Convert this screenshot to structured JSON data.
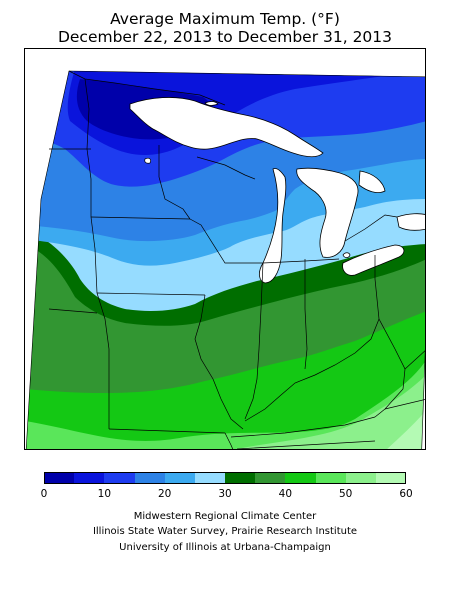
{
  "title": "Average Maximum Temp. (°F)",
  "subtitle": "December 22, 2013 to December 31, 2013",
  "legend": {
    "unit": "°F",
    "ticks": [
      "0",
      "10",
      "20",
      "30",
      "40",
      "50",
      "60"
    ],
    "bins": [
      {
        "range": [
          0,
          5
        ],
        "color": "#0000aa"
      },
      {
        "range": [
          5,
          10
        ],
        "color": "#0a14dc"
      },
      {
        "range": [
          10,
          15
        ],
        "color": "#1e3cf0"
      },
      {
        "range": [
          15,
          20
        ],
        "color": "#2d82e6"
      },
      {
        "range": [
          20,
          25
        ],
        "color": "#3caaf0"
      },
      {
        "range": [
          25,
          30
        ],
        "color": "#96dcff"
      },
      {
        "range": [
          30,
          35
        ],
        "color": "#006e00"
      },
      {
        "range": [
          35,
          40
        ],
        "color": "#329632"
      },
      {
        "range": [
          40,
          45
        ],
        "color": "#14c814"
      },
      {
        "range": [
          45,
          50
        ],
        "color": "#5ae65a"
      },
      {
        "range": [
          50,
          55
        ],
        "color": "#8cf08c"
      },
      {
        "range": [
          55,
          60
        ],
        "color": "#b4fab4"
      }
    ]
  },
  "credits": [
    "Midwestern Regional Climate Center",
    "Illinois State Water Survey, Prairie Research Institute",
    "University of Illinois at Urbana-Champaign"
  ]
}
